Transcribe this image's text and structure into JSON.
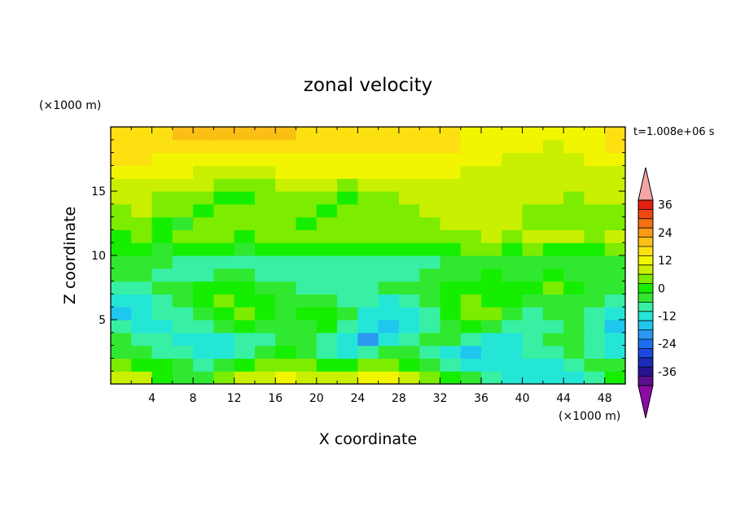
{
  "chart_data": {
    "type": "heatmap",
    "title": "zonal velocity",
    "xlabel": "X coordinate",
    "ylabel": "Z coordinate",
    "x_unit": "(×1000 m)",
    "y_unit": "(×1000 m)",
    "timestamp": "t=1.008e+06 s",
    "xlim": [
      0,
      50
    ],
    "ylim": [
      0,
      20
    ],
    "x_ticks": [
      4,
      8,
      12,
      16,
      20,
      24,
      28,
      32,
      36,
      40,
      44,
      48
    ],
    "y_ticks": [
      5,
      10,
      15
    ],
    "colorbar": {
      "levels": [
        -40,
        -36,
        -32,
        -28,
        -24,
        -20,
        -16,
        -12,
        -8,
        -4,
        0,
        4,
        8,
        12,
        16,
        20,
        24,
        28,
        32,
        36,
        40
      ],
      "labels": [
        36,
        24,
        12,
        0,
        -12,
        -24,
        -36
      ],
      "colors": [
        "#5a0f8c",
        "#28148c",
        "#1a2cb8",
        "#1c49dc",
        "#1e6df0",
        "#2b98f2",
        "#1fc6ee",
        "#24e6d6",
        "#38f0a4",
        "#30e830",
        "#16ee00",
        "#7cec00",
        "#c8f000",
        "#f2f500",
        "#fde012",
        "#fbbf16",
        "#f89a14",
        "#f57012",
        "#f04810",
        "#e42010"
      ],
      "extend_min_color": "#8c0ca6",
      "extend_max_color": "#f4a6a6"
    },
    "row_z": [
      0.5,
      1.5,
      2.5,
      3.5,
      4.5,
      5.5,
      6.5,
      7.5,
      8.5,
      9.5,
      10.5,
      11.5,
      12.5,
      13.5,
      14.5,
      15.5,
      16.5,
      17.5,
      18.5,
      19.5
    ],
    "col_x": [
      1,
      3,
      5,
      7,
      9,
      11,
      13,
      15,
      17,
      19,
      21,
      23,
      25,
      27,
      29,
      31,
      33,
      35,
      37,
      39,
      41,
      43,
      45,
      47,
      49
    ],
    "values": [
      [
        10,
        8,
        2,
        -2,
        -4,
        6,
        9,
        11,
        12,
        11,
        9,
        10,
        14,
        15,
        9,
        6,
        2,
        -4,
        -8,
        -10,
        -11,
        -12,
        -10,
        -6,
        0
      ],
      [
        6,
        2,
        0,
        -4,
        -6,
        -2,
        2,
        4,
        6,
        5,
        2,
        0,
        4,
        6,
        2,
        -2,
        -6,
        -10,
        -10,
        -10,
        -10,
        -10,
        -8,
        -4,
        -4
      ],
      [
        -2,
        -4,
        -6,
        -8,
        -10,
        -12,
        -8,
        -4,
        0,
        -2,
        -6,
        -10,
        -6,
        -4,
        -2,
        -6,
        -10,
        -14,
        -12,
        -10,
        -8,
        -6,
        -4,
        -8,
        -10
      ],
      [
        -4,
        -6,
        -8,
        -10,
        -12,
        -10,
        -8,
        -6,
        -2,
        -4,
        -8,
        -12,
        -18,
        -10,
        -8,
        -4,
        -2,
        -8,
        -12,
        -10,
        -6,
        -4,
        -2,
        -6,
        -12
      ],
      [
        -8,
        -10,
        -10,
        -8,
        -6,
        -4,
        0,
        -2,
        -4,
        -2,
        0,
        -6,
        -12,
        -14,
        -10,
        -6,
        -2,
        2,
        -2,
        -6,
        -8,
        -6,
        -4,
        -8,
        -14
      ],
      [
        -16,
        -12,
        -8,
        -6,
        -4,
        0,
        4,
        2,
        -2,
        0,
        2,
        -4,
        -10,
        -12,
        -10,
        -6,
        0,
        6,
        4,
        -2,
        -6,
        -4,
        -2,
        -6,
        -12
      ],
      [
        -12,
        -10,
        -8,
        -4,
        0,
        4,
        2,
        0,
        -2,
        -4,
        -4,
        -6,
        -8,
        -10,
        -8,
        -4,
        0,
        4,
        2,
        0,
        -2,
        -2,
        -2,
        -4,
        -6
      ],
      [
        -6,
        -6,
        -4,
        -2,
        0,
        2,
        0,
        -2,
        -4,
        -6,
        -6,
        -6,
        -6,
        -4,
        -4,
        -2,
        0,
        0,
        2,
        0,
        2,
        4,
        0,
        -2,
        -4
      ],
      [
        -2,
        -4,
        -6,
        -6,
        -6,
        -4,
        -4,
        -6,
        -8,
        -8,
        -8,
        -6,
        -6,
        -6,
        -6,
        -4,
        -2,
        -2,
        0,
        -2,
        -2,
        0,
        -2,
        -2,
        -2
      ],
      [
        -4,
        -2,
        -4,
        -6,
        -6,
        -6,
        -6,
        -8,
        -8,
        -8,
        -6,
        -6,
        -8,
        -8,
        -6,
        -6,
        -4,
        -4,
        -2,
        -2,
        -2,
        -4,
        -4,
        -2,
        -2
      ],
      [
        0,
        2,
        -2,
        0,
        2,
        0,
        -2,
        0,
        2,
        2,
        0,
        2,
        2,
        0,
        2,
        2,
        2,
        4,
        4,
        2,
        4,
        2,
        2,
        2,
        4
      ],
      [
        2,
        4,
        2,
        4,
        6,
        4,
        2,
        4,
        6,
        6,
        4,
        4,
        6,
        6,
        6,
        4,
        6,
        6,
        8,
        6,
        8,
        10,
        8,
        6,
        8
      ],
      [
        4,
        6,
        2,
        -2,
        4,
        6,
        4,
        6,
        4,
        2,
        4,
        4,
        6,
        4,
        4,
        6,
        8,
        8,
        8,
        8,
        6,
        6,
        4,
        4,
        6
      ],
      [
        6,
        8,
        6,
        4,
        2,
        4,
        6,
        6,
        6,
        4,
        2,
        4,
        6,
        6,
        6,
        8,
        8,
        10,
        10,
        8,
        6,
        6,
        6,
        6,
        6
      ],
      [
        8,
        8,
        6,
        6,
        4,
        2,
        2,
        4,
        6,
        6,
        4,
        2,
        4,
        6,
        8,
        8,
        10,
        10,
        10,
        10,
        8,
        8,
        6,
        8,
        8
      ],
      [
        10,
        10,
        8,
        8,
        8,
        6,
        6,
        6,
        8,
        8,
        8,
        6,
        8,
        10,
        10,
        10,
        10,
        10,
        10,
        10,
        10,
        10,
        8,
        8,
        8
      ],
      [
        12,
        12,
        12,
        12,
        10,
        10,
        10,
        10,
        12,
        12,
        12,
        12,
        12,
        12,
        12,
        12,
        12,
        10,
        10,
        10,
        10,
        10,
        10,
        10,
        10
      ],
      [
        16,
        16,
        14,
        14,
        14,
        14,
        14,
        14,
        14,
        14,
        14,
        14,
        14,
        14,
        14,
        14,
        14,
        12,
        12,
        10,
        10,
        10,
        10,
        12,
        14
      ],
      [
        18,
        18,
        18,
        18,
        18,
        18,
        18,
        18,
        18,
        18,
        18,
        18,
        18,
        16,
        16,
        16,
        16,
        14,
        12,
        12,
        12,
        10,
        12,
        14,
        16
      ],
      [
        17,
        18,
        19,
        20,
        21,
        22,
        22,
        21,
        20,
        19,
        18,
        18,
        19,
        19,
        18,
        17,
        16,
        14,
        13,
        12,
        12,
        12,
        13,
        15,
        17
      ]
    ]
  }
}
